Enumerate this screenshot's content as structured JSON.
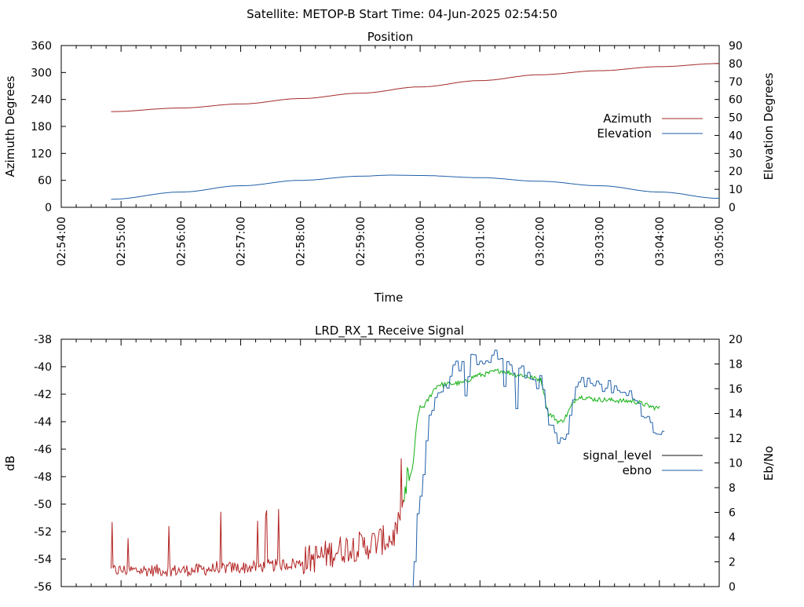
{
  "header": {
    "title": "Satellite: METOP-B    Start Time: 04-Jun-2025 02:54:50"
  },
  "colors": {
    "azimuth": "#a52a2a",
    "elevation": "#1f5fa8",
    "signal_level": "#111111",
    "ebno": "#1f5fa8",
    "signal_red": "#b22222",
    "signal_green": "#12b012"
  },
  "chart_data": [
    {
      "type": "line",
      "title": "Position",
      "xlabel": "Time",
      "ylabel": "Azimuth Degrees",
      "y2label": "Elevation Degrees",
      "ylim": [
        0,
        360
      ],
      "y2lim": [
        0,
        90
      ],
      "yticks": [
        "0",
        "60",
        "120",
        "180",
        "240",
        "300",
        "360"
      ],
      "y2ticks": [
        "0",
        "10",
        "20",
        "30",
        "40",
        "50",
        "60",
        "70",
        "80",
        "90"
      ],
      "xticks": [
        "02:54:00",
        "02:55:00",
        "02:56:00",
        "02:57:00",
        "02:58:00",
        "02:59:00",
        "03:00:00",
        "03:01:00",
        "03:02:00",
        "03:03:00",
        "03:04:00",
        "03:05:00"
      ],
      "legend_position": "right",
      "series": [
        {
          "name": "Azimuth",
          "axis": "left",
          "color": "#a52a2a",
          "x": [
            "02:54:50",
            "02:56:00",
            "02:57:00",
            "02:58:00",
            "02:59:00",
            "03:00:00",
            "03:01:00",
            "03:02:00",
            "03:03:00",
            "03:04:00",
            "03:05:00"
          ],
          "values": [
            213,
            221,
            230,
            242,
            254,
            268,
            282,
            295,
            304,
            313,
            320
          ]
        },
        {
          "name": "Elevation",
          "axis": "right",
          "color": "#1f5fa8",
          "x": [
            "02:54:50",
            "02:56:00",
            "02:57:00",
            "02:58:00",
            "02:59:00",
            "02:59:30",
            "03:00:00",
            "03:01:00",
            "03:02:00",
            "03:03:00",
            "03:04:00",
            "03:05:00"
          ],
          "values": [
            4.5,
            8.5,
            12,
            15,
            17.3,
            17.9,
            17.7,
            16.5,
            14.5,
            12,
            8.5,
            5
          ]
        }
      ]
    },
    {
      "type": "line",
      "title": "LRD_RX_1 Receive Signal",
      "xlabel": "",
      "ylabel": "dB",
      "y2label": "Eb/No",
      "ylim": [
        -56,
        -38
      ],
      "y2lim": [
        0,
        20
      ],
      "yticks": [
        "-56",
        "-54",
        "-52",
        "-50",
        "-48",
        "-46",
        "-44",
        "-42",
        "-40",
        "-38"
      ],
      "y2ticks": [
        "0",
        "2",
        "4",
        "6",
        "8",
        "10",
        "12",
        "14",
        "16",
        "18",
        "20"
      ],
      "legend_position": "right",
      "series": [
        {
          "name": "signal_level",
          "axis": "left",
          "color": "#111111",
          "x": [
            "02:54:50",
            "02:56:00",
            "02:57:00",
            "02:58:00",
            "02:59:00",
            "02:59:30",
            "02:59:40",
            "02:59:50",
            "03:00:00",
            "03:00:20",
            "03:00:40",
            "03:01:00",
            "03:01:20",
            "03:01:40",
            "03:02:00",
            "03:02:10",
            "03:02:20",
            "03:02:40",
            "03:03:00",
            "03:03:30",
            "03:04:00"
          ],
          "values": [
            -55,
            -55,
            -54.8,
            -54.5,
            -53.5,
            -53,
            -52,
            -48,
            -43,
            -41.3,
            -41.2,
            -40.6,
            -40.3,
            -40.6,
            -40.9,
            -43.5,
            -44,
            -42.2,
            -42.4,
            -42.5,
            -43
          ]
        },
        {
          "name": "ebno",
          "axis": "right",
          "color": "#1f5fa8",
          "x": [
            "02:59:50",
            "03:00:00",
            "03:00:10",
            "03:00:20",
            "03:00:40",
            "03:01:00",
            "03:01:20",
            "03:01:40",
            "03:02:00",
            "03:02:10",
            "03:02:20",
            "03:02:40",
            "03:03:00",
            "03:03:30",
            "03:04:00",
            "03:04:05"
          ],
          "values": [
            0,
            7,
            14.5,
            16,
            18,
            18.5,
            18.6,
            17.5,
            16.5,
            13,
            11.5,
            16.5,
            16.3,
            15.5,
            12.2,
            12.9
          ]
        }
      ]
    }
  ]
}
